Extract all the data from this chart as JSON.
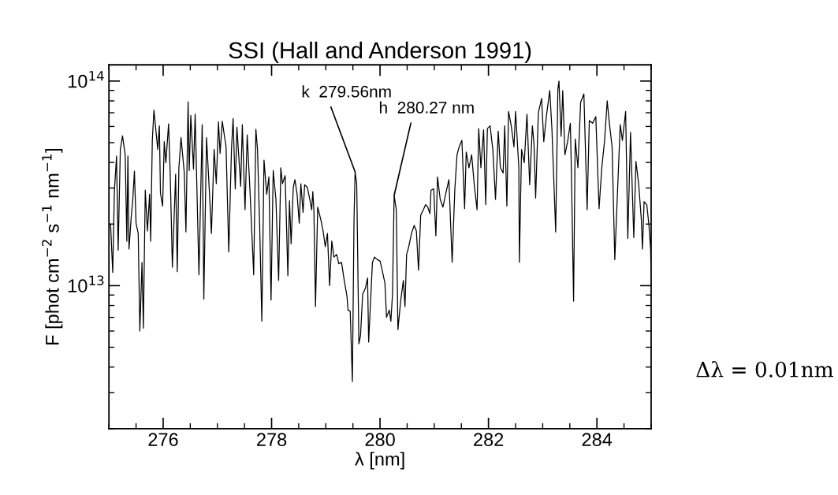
{
  "chart_data": {
    "type": "line",
    "title": "SSI (Hall and Anderson 1991)",
    "xlabel": "λ [nm]",
    "ylabel": "F [phot cm$^{−2}$ s$^{−1}$ nm$^{−1}$]",
    "log": "y",
    "grid": false,
    "marker": "none",
    "line_style": "solid",
    "xlim": [
      275,
      285
    ],
    "xticks": [
      276,
      278,
      280,
      282,
      284
    ],
    "ylim": [
      2000000000000.0,
      120000000000000.0
    ],
    "yticks": [
      {
        "value": 10000000000000.0,
        "label": "10$^{13}$"
      },
      {
        "value": 100000000000000.0,
        "label": "10$^{14}$"
      }
    ],
    "annotations": [
      {
        "text": "k  279.56nm",
        "x": 279.54,
        "y": 36000000000000.0
      },
      {
        "text": "h  280.27 nm",
        "x": 280.26,
        "y": 27600000000000.0
      },
      "Δλ = 0.01nm"
    ],
    "series": [
      {
        "color": "#000000",
        "x": [
          275.03,
          275.07,
          275.1,
          275.14,
          275.17,
          275.21,
          275.25,
          275.3,
          275.33,
          275.35,
          275.37,
          275.41,
          275.44,
          275.47,
          275.5,
          275.54,
          275.57,
          275.61,
          275.635,
          275.67,
          275.71,
          275.75,
          275.77,
          275.8,
          275.83,
          275.9,
          275.93,
          275.95,
          275.99,
          276.02,
          276.05,
          276.1,
          276.13,
          276.17,
          276.23,
          276.26,
          276.29,
          276.33,
          276.39,
          276.42,
          276.46,
          276.48,
          276.51,
          276.56,
          276.59,
          276.66,
          276.72,
          276.75,
          276.8,
          276.85,
          276.89,
          276.94,
          276.98,
          277.02,
          277.05,
          277.09,
          277.16,
          277.21,
          277.26,
          277.29,
          277.33,
          277.36,
          277.43,
          277.46,
          277.51,
          277.55,
          277.6,
          277.67,
          277.71,
          277.74,
          277.78,
          277.82,
          277.86,
          277.91,
          277.95,
          277.99,
          278.03,
          278.08,
          278.13,
          278.17,
          278.2,
          278.25,
          278.3,
          278.33,
          278.36,
          278.4,
          278.43,
          278.47,
          278.51,
          278.54,
          278.58,
          278.61,
          278.66,
          278.7,
          278.74,
          278.76,
          278.78,
          278.81,
          278.85,
          278.91,
          278.95,
          278.99,
          279.03,
          279.07,
          279.11,
          279.15,
          279.2,
          279.24,
          279.29,
          279.34,
          279.39,
          279.41,
          279.45,
          279.49,
          279.52,
          279.54,
          279.57,
          279.61,
          279.64,
          279.68,
          279.73,
          279.77,
          279.79,
          279.83,
          279.86,
          279.9,
          279.95,
          280.0,
          280.04,
          280.09,
          280.12,
          280.17,
          280.2,
          280.23,
          280.26,
          280.3,
          280.33,
          280.38,
          280.43,
          280.46,
          280.49,
          280.53,
          280.58,
          280.63,
          280.67,
          280.71,
          280.75,
          280.8,
          280.84,
          280.88,
          280.92,
          280.94,
          280.99,
          281.03,
          281.06,
          281.11,
          281.16,
          281.21,
          281.27,
          281.33,
          281.38,
          281.42,
          281.46,
          281.51,
          281.56,
          281.59,
          281.64,
          281.69,
          281.74,
          281.79,
          281.82,
          281.86,
          281.91,
          281.95,
          281.98,
          282.03,
          282.08,
          282.13,
          282.18,
          282.22,
          282.27,
          282.3,
          282.34,
          282.37,
          282.42,
          282.47,
          282.5,
          282.56,
          282.57,
          282.61,
          282.66,
          282.71,
          282.76,
          282.81,
          282.84,
          282.87,
          282.92,
          282.98,
          283.02,
          283.07,
          283.13,
          283.17,
          283.24,
          283.28,
          283.3,
          283.34,
          283.37,
          283.41,
          283.46,
          283.51,
          283.53,
          283.57,
          283.6,
          283.65,
          283.7,
          283.76,
          283.82,
          283.86,
          283.92,
          283.98,
          284.04,
          284.09,
          284.14,
          284.19,
          284.23,
          284.28,
          284.33,
          284.38,
          284.43,
          284.47,
          284.53,
          284.57,
          284.62,
          284.68,
          284.72,
          284.77,
          284.82,
          284.84,
          284.87,
          284.92,
          284.96,
          284.99,
          285.0
        ],
        "values": [
          20000000000000.0,
          11600000000000.0,
          28800000000000.0,
          43000000000000.0,
          14900000000000.0,
          46300000000000.0,
          54000000000000.0,
          43600000000000.0,
          16500000000000.0,
          43000000000000.0,
          15100000000000.0,
          21500000000000.0,
          26400000000000.0,
          36300000000000.0,
          20200000000000.0,
          18000000000000.0,
          6000000000000.0,
          13000000000000.0,
          6200000000000.0,
          29300000000000.0,
          18500000000000.0,
          28000000000000.0,
          16500000000000.0,
          51300000000000.0,
          72100000000000.0,
          46300000000000.0,
          60400000000000.0,
          28400000000000.0,
          24500000000000.0,
          50600000000000.0,
          39900000000000.0,
          61800000000000.0,
          35500000000000.0,
          12300000000000.0,
          35000000000000.0,
          11700000000000.0,
          37700000000000.0,
          52900000000000.0,
          35500000000000.0,
          18300000000000.0,
          79200000000000.0,
          36500000000000.0,
          67900000000000.0,
          37100000000000.0,
          68900000000000.0,
          11300000000000.0,
          61200000000000.0,
          8600000000000.0,
          52900000000000.0,
          29700000000000.0,
          18000000000000.0,
          46300000000000.0,
          31500000000000.0,
          63100000000000.0,
          44300000000000.0,
          63600000000000.0,
          47700000000000.0,
          14600000000000.0,
          46300000000000.0,
          65600000000000.0,
          29700000000000.0,
          59500000000000.0,
          30600000000000.0,
          61200000000000.0,
          23500000000000.0,
          54500000000000.0,
          29700000000000.0,
          11300000000000.0,
          58100000000000.0,
          46300000000000.0,
          19700000000000.0,
          6700000000000.0,
          41100000000000.0,
          28000000000000.0,
          34000000000000.0,
          8500000000000.0,
          36500000000000.0,
          26400000000000.0,
          10600000000000.0,
          37700000000000.0,
          31500000000000.0,
          34500000000000.0,
          11200000000000.0,
          26000000000000.0,
          16000000000000.0,
          30200000000000.0,
          33000000000000.0,
          28000000000000.0,
          20200000000000.0,
          31500000000000.0,
          22800000000000.0,
          31100000000000.0,
          30200000000000.0,
          26800000000000.0,
          23500000000000.0,
          28800000000000.0,
          23500000000000.0,
          7900000000000.0,
          24200000000000.0,
          20900000000000.0,
          18500000000000.0,
          15500000000000.0,
          18000000000000.0,
          10000000000000.0,
          16500000000000.0,
          13800000000000.0,
          14200000000000.0,
          12800000000000.0,
          13000000000000.0,
          10600000000000.0,
          8900000000000.0,
          7600000000000.0,
          7500000000000.0,
          3400000000000.0,
          20900000000000.0,
          36000000000000.0,
          31500000000000.0,
          5200000000000.0,
          5700000000000.0,
          9100000000000.0,
          9700000000000.0,
          10900000000000.0,
          5300000000000.0,
          8900000000000.0,
          13000000000000.0,
          13800000000000.0,
          13400000000000.0,
          13200000000000.0,
          11900000000000.0,
          10300000000000.0,
          7000000000000.0,
          7600000000000.0,
          6700000000000.0,
          9100000000000.0,
          27600000000000.0,
          23500000000000.0,
          6100000000000.0,
          8400000000000.0,
          10600000000000.0,
          7900000000000.0,
          14200000000000.0,
          15500000000000.0,
          18000000000000.0,
          19700000000000.0,
          18500000000000.0,
          11900000000000.0,
          22100000000000.0,
          23500000000000.0,
          24900000000000.0,
          24200000000000.0,
          22500000000000.0,
          29300000000000.0,
          29700000000000.0,
          17500000000000.0,
          34000000000000.0,
          26400000000000.0,
          24200000000000.0,
          28000000000000.0,
          33000000000000.0,
          13000000000000.0,
          29700000000000.0,
          43600000000000.0,
          47700000000000.0,
          51300000000000.0,
          23800000000000.0,
          45000000000000.0,
          37700000000000.0,
          43600000000000.0,
          30600000000000.0,
          23500000000000.0,
          58600000000000.0,
          37700000000000.0,
          57800000000000.0,
          24900000000000.0,
          58600000000000.0,
          60400000000000.0,
          46300000000000.0,
          26400000000000.0,
          56900000000000.0,
          37700000000000.0,
          35500000000000.0,
          60400000000000.0,
          24500000000000.0,
          71000000000000.0,
          60400000000000.0,
          47700000000000.0,
          71000000000000.0,
          37700000000000.0,
          13000000000000.0,
          46300000000000.0,
          39900000000000.0,
          68900000000000.0,
          31100000000000.0,
          60400000000000.0,
          49100000000000.0,
          26800000000000.0,
          70000000000000.0,
          82300000000000.0,
          50600000000000.0,
          67900000000000.0,
          89900000000000.0,
          58600000000000.0,
          18300000000000.0,
          91300000000000.0,
          100000000000000.0,
          53700000000000.0,
          89900000000000.0,
          43600000000000.0,
          50600000000000.0,
          62200000000000.0,
          35500000000000.0,
          8400000000000.0,
          52100000000000.0,
          37700000000000.0,
          78700000000000.0,
          86500000000000.0,
          23500000000000.0,
          64100000000000.0,
          62200000000000.0,
          67000000000000.0,
          23800000000000.0,
          37700000000000.0,
          50600000000000.0,
          80000000000000.0,
          62200000000000.0,
          47700000000000.0,
          13400000000000.0,
          28800000000000.0,
          61200000000000.0,
          51300000000000.0,
          71000000000000.0,
          17000000000000.0,
          56100000000000.0,
          17200000000000.0,
          40500000000000.0,
          31500000000000.0,
          20900000000000.0,
          15100000000000.0,
          25700000000000.0,
          24900000000000.0,
          19700000000000.0,
          15100000000000.0,
          10900000000000.0
        ]
      }
    ]
  }
}
